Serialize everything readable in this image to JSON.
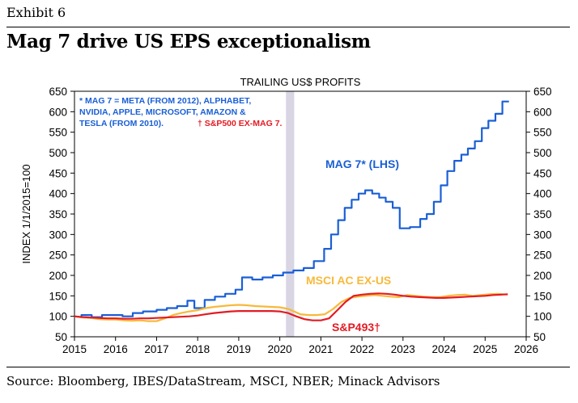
{
  "exhibit": "Exhibit 6",
  "title": "Mag 7 drive US EPS exceptionalism",
  "source": "Source: Bloomberg, IBES/DataStream, MSCI, NBER; Minack Advisors",
  "chart_data": {
    "type": "line",
    "title": "TRAILING US$ PROFITS",
    "ylabel": "INDEX 1/1/2015=100",
    "xlim": [
      2015,
      2026
    ],
    "ylim": [
      50,
      650
    ],
    "xticks": [
      "2015",
      "2016",
      "2017",
      "2018",
      "2019",
      "2020",
      "2021",
      "2022",
      "2023",
      "2024",
      "2025",
      "2026"
    ],
    "yticks": [
      "50",
      "100",
      "150",
      "200",
      "250",
      "300",
      "350",
      "400",
      "450",
      "500",
      "550",
      "600",
      "650"
    ],
    "recession": [
      2020.15,
      2020.35
    ],
    "note_blue": [
      "* MAG 7 = META (FROM 2012), ALPHABET,",
      "NVIDIA, APPLE, MICROSOFT, AMAZON &",
      "TESLA (FROM 2010)."
    ],
    "note_red": "† S&P500 EX-MAG 7.",
    "labels": {
      "mag7": "MAG 7* (LHS)",
      "msci": "MSCI AC EX-US",
      "sp493": "S&P493†"
    },
    "colors": {
      "mag7": "#1a5fd6",
      "msci": "#f7b93a",
      "sp493": "#e31b23",
      "recession": "#d9d5e3"
    },
    "series": [
      {
        "name": "MAG 7* (LHS)",
        "key": "mag7",
        "points": [
          [
            2015,
            100
          ],
          [
            2015.17,
            98
          ],
          [
            2015.17,
            103
          ],
          [
            2015.42,
            103
          ],
          [
            2015.42,
            98
          ],
          [
            2015.67,
            98
          ],
          [
            2015.67,
            103
          ],
          [
            2016.17,
            103
          ],
          [
            2016.17,
            100
          ],
          [
            2016.42,
            100
          ],
          [
            2016.42,
            108
          ],
          [
            2016.67,
            108
          ],
          [
            2016.67,
            112
          ],
          [
            2017.0,
            112
          ],
          [
            2017.0,
            116
          ],
          [
            2017.25,
            116
          ],
          [
            2017.25,
            120
          ],
          [
            2017.5,
            120
          ],
          [
            2017.5,
            125
          ],
          [
            2017.75,
            125
          ],
          [
            2017.75,
            138
          ],
          [
            2017.92,
            138
          ],
          [
            2017.92,
            120
          ],
          [
            2018.17,
            120
          ],
          [
            2018.17,
            140
          ],
          [
            2018.42,
            140
          ],
          [
            2018.42,
            148
          ],
          [
            2018.67,
            148
          ],
          [
            2018.67,
            155
          ],
          [
            2018.92,
            155
          ],
          [
            2018.92,
            165
          ],
          [
            2019.08,
            165
          ],
          [
            2019.08,
            195
          ],
          [
            2019.33,
            195
          ],
          [
            2019.33,
            190
          ],
          [
            2019.58,
            190
          ],
          [
            2019.58,
            195
          ],
          [
            2019.83,
            195
          ],
          [
            2019.83,
            200
          ],
          [
            2020.08,
            200
          ],
          [
            2020.08,
            207
          ],
          [
            2020.33,
            207
          ],
          [
            2020.33,
            212
          ],
          [
            2020.58,
            212
          ],
          [
            2020.58,
            218
          ],
          [
            2020.83,
            218
          ],
          [
            2020.83,
            235
          ],
          [
            2021.08,
            235
          ],
          [
            2021.08,
            265
          ],
          [
            2021.25,
            265
          ],
          [
            2021.25,
            300
          ],
          [
            2021.42,
            300
          ],
          [
            2021.42,
            335
          ],
          [
            2021.58,
            335
          ],
          [
            2021.58,
            365
          ],
          [
            2021.75,
            365
          ],
          [
            2021.75,
            385
          ],
          [
            2021.92,
            385
          ],
          [
            2021.92,
            400
          ],
          [
            2022.08,
            400
          ],
          [
            2022.08,
            408
          ],
          [
            2022.25,
            408
          ],
          [
            2022.25,
            400
          ],
          [
            2022.42,
            400
          ],
          [
            2022.42,
            390
          ],
          [
            2022.58,
            390
          ],
          [
            2022.58,
            380
          ],
          [
            2022.75,
            380
          ],
          [
            2022.75,
            365
          ],
          [
            2022.92,
            365
          ],
          [
            2022.92,
            315
          ],
          [
            2023.17,
            315
          ],
          [
            2023.17,
            318
          ],
          [
            2023.42,
            318
          ],
          [
            2023.42,
            338
          ],
          [
            2023.58,
            338
          ],
          [
            2023.58,
            350
          ],
          [
            2023.75,
            350
          ],
          [
            2023.75,
            380
          ],
          [
            2023.92,
            380
          ],
          [
            2023.92,
            420
          ],
          [
            2024.08,
            420
          ],
          [
            2024.08,
            455
          ],
          [
            2024.25,
            455
          ],
          [
            2024.25,
            480
          ],
          [
            2024.42,
            480
          ],
          [
            2024.42,
            495
          ],
          [
            2024.58,
            495
          ],
          [
            2024.58,
            510
          ],
          [
            2024.75,
            510
          ],
          [
            2024.75,
            528
          ],
          [
            2024.92,
            528
          ],
          [
            2024.92,
            560
          ],
          [
            2025.08,
            560
          ],
          [
            2025.08,
            578
          ],
          [
            2025.25,
            578
          ],
          [
            2025.25,
            595
          ],
          [
            2025.42,
            595
          ],
          [
            2025.42,
            625
          ],
          [
            2025.58,
            625
          ]
        ]
      },
      {
        "name": "MSCI AC EX-US",
        "key": "msci",
        "points": [
          [
            2015,
            100
          ],
          [
            2015.2,
            97
          ],
          [
            2015.4,
            96
          ],
          [
            2015.6,
            93
          ],
          [
            2015.8,
            92
          ],
          [
            2016.0,
            92
          ],
          [
            2016.2,
            90
          ],
          [
            2016.4,
            89
          ],
          [
            2016.6,
            90
          ],
          [
            2016.8,
            88
          ],
          [
            2017.0,
            88
          ],
          [
            2017.2,
            95
          ],
          [
            2017.4,
            103
          ],
          [
            2017.6,
            108
          ],
          [
            2017.8,
            112
          ],
          [
            2018.0,
            115
          ],
          [
            2018.2,
            120
          ],
          [
            2018.4,
            123
          ],
          [
            2018.6,
            125
          ],
          [
            2018.8,
            127
          ],
          [
            2019.0,
            128
          ],
          [
            2019.2,
            127
          ],
          [
            2019.4,
            125
          ],
          [
            2019.6,
            124
          ],
          [
            2019.8,
            123
          ],
          [
            2020.0,
            122
          ],
          [
            2020.2,
            118
          ],
          [
            2020.35,
            112
          ],
          [
            2020.5,
            105
          ],
          [
            2020.7,
            103
          ],
          [
            2020.9,
            103
          ],
          [
            2021.1,
            105
          ],
          [
            2021.3,
            118
          ],
          [
            2021.5,
            135
          ],
          [
            2021.7,
            145
          ],
          [
            2021.9,
            148
          ],
          [
            2022.1,
            150
          ],
          [
            2022.3,
            152
          ],
          [
            2022.5,
            150
          ],
          [
            2022.7,
            148
          ],
          [
            2022.9,
            147
          ],
          [
            2023.1,
            152
          ],
          [
            2023.3,
            150
          ],
          [
            2023.5,
            148
          ],
          [
            2023.7,
            147
          ],
          [
            2023.9,
            147
          ],
          [
            2024.1,
            150
          ],
          [
            2024.3,
            152
          ],
          [
            2024.5,
            153
          ],
          [
            2024.7,
            150
          ],
          [
            2024.9,
            152
          ],
          [
            2025.1,
            154
          ],
          [
            2025.3,
            155
          ],
          [
            2025.55,
            153
          ]
        ]
      },
      {
        "name": "S&P493†",
        "key": "sp493",
        "points": [
          [
            2015,
            100
          ],
          [
            2015.2,
            98
          ],
          [
            2015.4,
            97
          ],
          [
            2015.6,
            96
          ],
          [
            2015.8,
            95
          ],
          [
            2016.0,
            95
          ],
          [
            2016.2,
            94
          ],
          [
            2016.4,
            94
          ],
          [
            2016.6,
            95
          ],
          [
            2016.8,
            95
          ],
          [
            2017.0,
            96
          ],
          [
            2017.2,
            97
          ],
          [
            2017.4,
            98
          ],
          [
            2017.6,
            99
          ],
          [
            2017.8,
            100
          ],
          [
            2018.0,
            102
          ],
          [
            2018.2,
            105
          ],
          [
            2018.4,
            108
          ],
          [
            2018.6,
            110
          ],
          [
            2018.8,
            112
          ],
          [
            2019.0,
            113
          ],
          [
            2019.2,
            113
          ],
          [
            2019.4,
            113
          ],
          [
            2019.6,
            113
          ],
          [
            2019.8,
            113
          ],
          [
            2020.0,
            112
          ],
          [
            2020.2,
            108
          ],
          [
            2020.4,
            100
          ],
          [
            2020.6,
            93
          ],
          [
            2020.8,
            90
          ],
          [
            2021.0,
            90
          ],
          [
            2021.2,
            95
          ],
          [
            2021.4,
            115
          ],
          [
            2021.6,
            135
          ],
          [
            2021.8,
            150
          ],
          [
            2022.0,
            153
          ],
          [
            2022.2,
            155
          ],
          [
            2022.4,
            156
          ],
          [
            2022.6,
            155
          ],
          [
            2022.8,
            153
          ],
          [
            2023.0,
            150
          ],
          [
            2023.2,
            148
          ],
          [
            2023.4,
            147
          ],
          [
            2023.6,
            146
          ],
          [
            2023.8,
            145
          ],
          [
            2024.0,
            145
          ],
          [
            2024.2,
            146
          ],
          [
            2024.4,
            147
          ],
          [
            2024.6,
            148
          ],
          [
            2024.8,
            149
          ],
          [
            2025.0,
            150
          ],
          [
            2025.2,
            152
          ],
          [
            2025.4,
            153
          ],
          [
            2025.55,
            154
          ]
        ]
      }
    ]
  }
}
